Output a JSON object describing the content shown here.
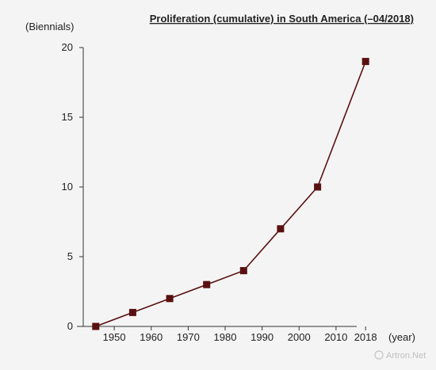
{
  "chart_data": {
    "type": "line",
    "title": "Proliferation (cumulative) in South America (–04/2018)",
    "ylabel": "(Biennials)",
    "xlabel": "(year)",
    "ylim": [
      0,
      20
    ],
    "y_ticks": [
      0,
      5,
      10,
      15,
      20
    ],
    "x_ticks": [
      1950,
      1960,
      1970,
      1980,
      1990,
      2000,
      2010,
      2018
    ],
    "grid": false,
    "series": [
      {
        "color": "#5a1010",
        "marker": "square",
        "x": [
          1945,
          1955,
          1965,
          1975,
          1985,
          1995,
          2005,
          2018
        ],
        "y": [
          0,
          1,
          2,
          3,
          4,
          7,
          10,
          19
        ]
      }
    ]
  },
  "watermark": "Artron.Net"
}
